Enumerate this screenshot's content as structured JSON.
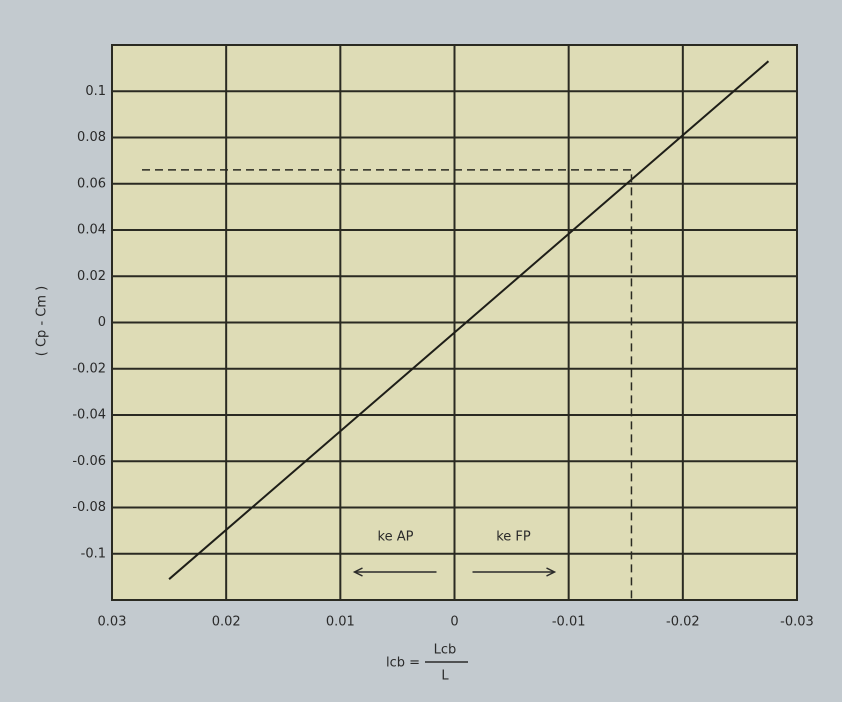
{
  "chart_data": {
    "type": "line",
    "ylabel": "( Cp - Cm )",
    "xlabel_prefix": "lcb =",
    "xlabel_numerator": "Lcb",
    "xlabel_denominator": "L",
    "x": [
      0.025,
      -0.0275
    ],
    "values": [
      -0.111,
      0.113
    ],
    "color": "#1e1e18",
    "reference_point": {
      "x": -0.0155,
      "y": 0.066
    },
    "annotations": [
      {
        "text": "ke AP",
        "direction": "left"
      },
      {
        "text": "ke FP",
        "direction": "right"
      }
    ],
    "xlim": [
      0.03,
      -0.03
    ],
    "xticks": [
      0.03,
      0.02,
      0.01,
      0,
      -0.01,
      -0.02,
      -0.03
    ],
    "ylim": [
      -0.12,
      0.12
    ],
    "yticks": [
      0.1,
      0.08,
      0.06,
      0.04,
      0.02,
      0,
      -0.02,
      -0.04,
      -0.06,
      -0.08,
      -0.1
    ],
    "grid": true
  }
}
